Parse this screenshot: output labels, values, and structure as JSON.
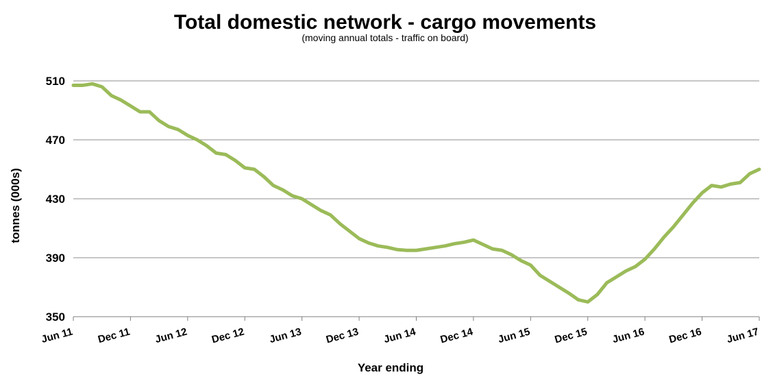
{
  "chart_data": {
    "type": "line",
    "title": "Total domestic network - cargo movements",
    "subtitle": "(moving annual totals - traffic on board)",
    "xlabel": "Year ending",
    "ylabel": "tonnes (000s)",
    "ylim": [
      350,
      510
    ],
    "yticks": [
      350,
      390,
      430,
      470,
      510
    ],
    "grid": true,
    "legend": "none",
    "line_color": "#9bbb59",
    "x_ticks": [
      "Jun 11",
      "Dec 11",
      "Jun 12",
      "Dec 12",
      "Jun 13",
      "Dec 13",
      "Jun 14",
      "Dec 14",
      "Jun 15",
      "Dec 15",
      "Jun 16",
      "Dec 16",
      "Jun 17"
    ],
    "x": [
      "Jun 11",
      "Jul 11",
      "Aug 11",
      "Sep 11",
      "Oct 11",
      "Nov 11",
      "Dec 11",
      "Jan 12",
      "Feb 12",
      "Mar 12",
      "Apr 12",
      "May 12",
      "Jun 12",
      "Jul 12",
      "Aug 12",
      "Sep 12",
      "Oct 12",
      "Nov 12",
      "Dec 12",
      "Jan 13",
      "Feb 13",
      "Mar 13",
      "Apr 13",
      "May 13",
      "Jun 13",
      "Jul 13",
      "Aug 13",
      "Sep 13",
      "Oct 13",
      "Nov 13",
      "Dec 13",
      "Jan 14",
      "Feb 14",
      "Mar 14",
      "Apr 14",
      "May 14",
      "Jun 14",
      "Jul 14",
      "Aug 14",
      "Sep 14",
      "Oct 14",
      "Nov 14",
      "Dec 14",
      "Jan 15",
      "Feb 15",
      "Mar 15",
      "Apr 15",
      "May 15",
      "Jun 15",
      "Jul 15",
      "Aug 15",
      "Sep 15",
      "Oct 15",
      "Nov 15",
      "Dec 15",
      "Jan 16",
      "Feb 16",
      "Mar 16",
      "Apr 16",
      "May 16",
      "Jun 16",
      "Jul 16",
      "Aug 16",
      "Sep 16",
      "Oct 16",
      "Nov 16",
      "Dec 16",
      "Jan 17",
      "Feb 17",
      "Mar 17",
      "Apr 17",
      "May 17",
      "Jun 17"
    ],
    "series": [
      {
        "values": [
          507,
          507,
          508,
          506,
          500,
          497,
          493,
          489,
          489,
          483,
          479,
          477,
          473,
          470,
          466,
          461,
          460,
          456,
          451,
          450,
          445,
          439,
          436,
          432,
          430,
          426,
          422,
          419,
          413,
          408,
          403,
          400,
          398,
          397,
          395.5,
          395,
          395,
          396,
          397,
          398,
          399.5,
          400.5,
          402,
          399,
          396,
          395,
          392,
          388,
          385,
          378,
          374,
          370,
          366,
          361.5,
          360,
          365,
          373,
          377,
          381,
          384,
          389,
          396,
          404,
          411,
          419,
          427,
          434,
          439,
          438,
          440,
          441,
          447,
          450
        ]
      }
    ]
  }
}
